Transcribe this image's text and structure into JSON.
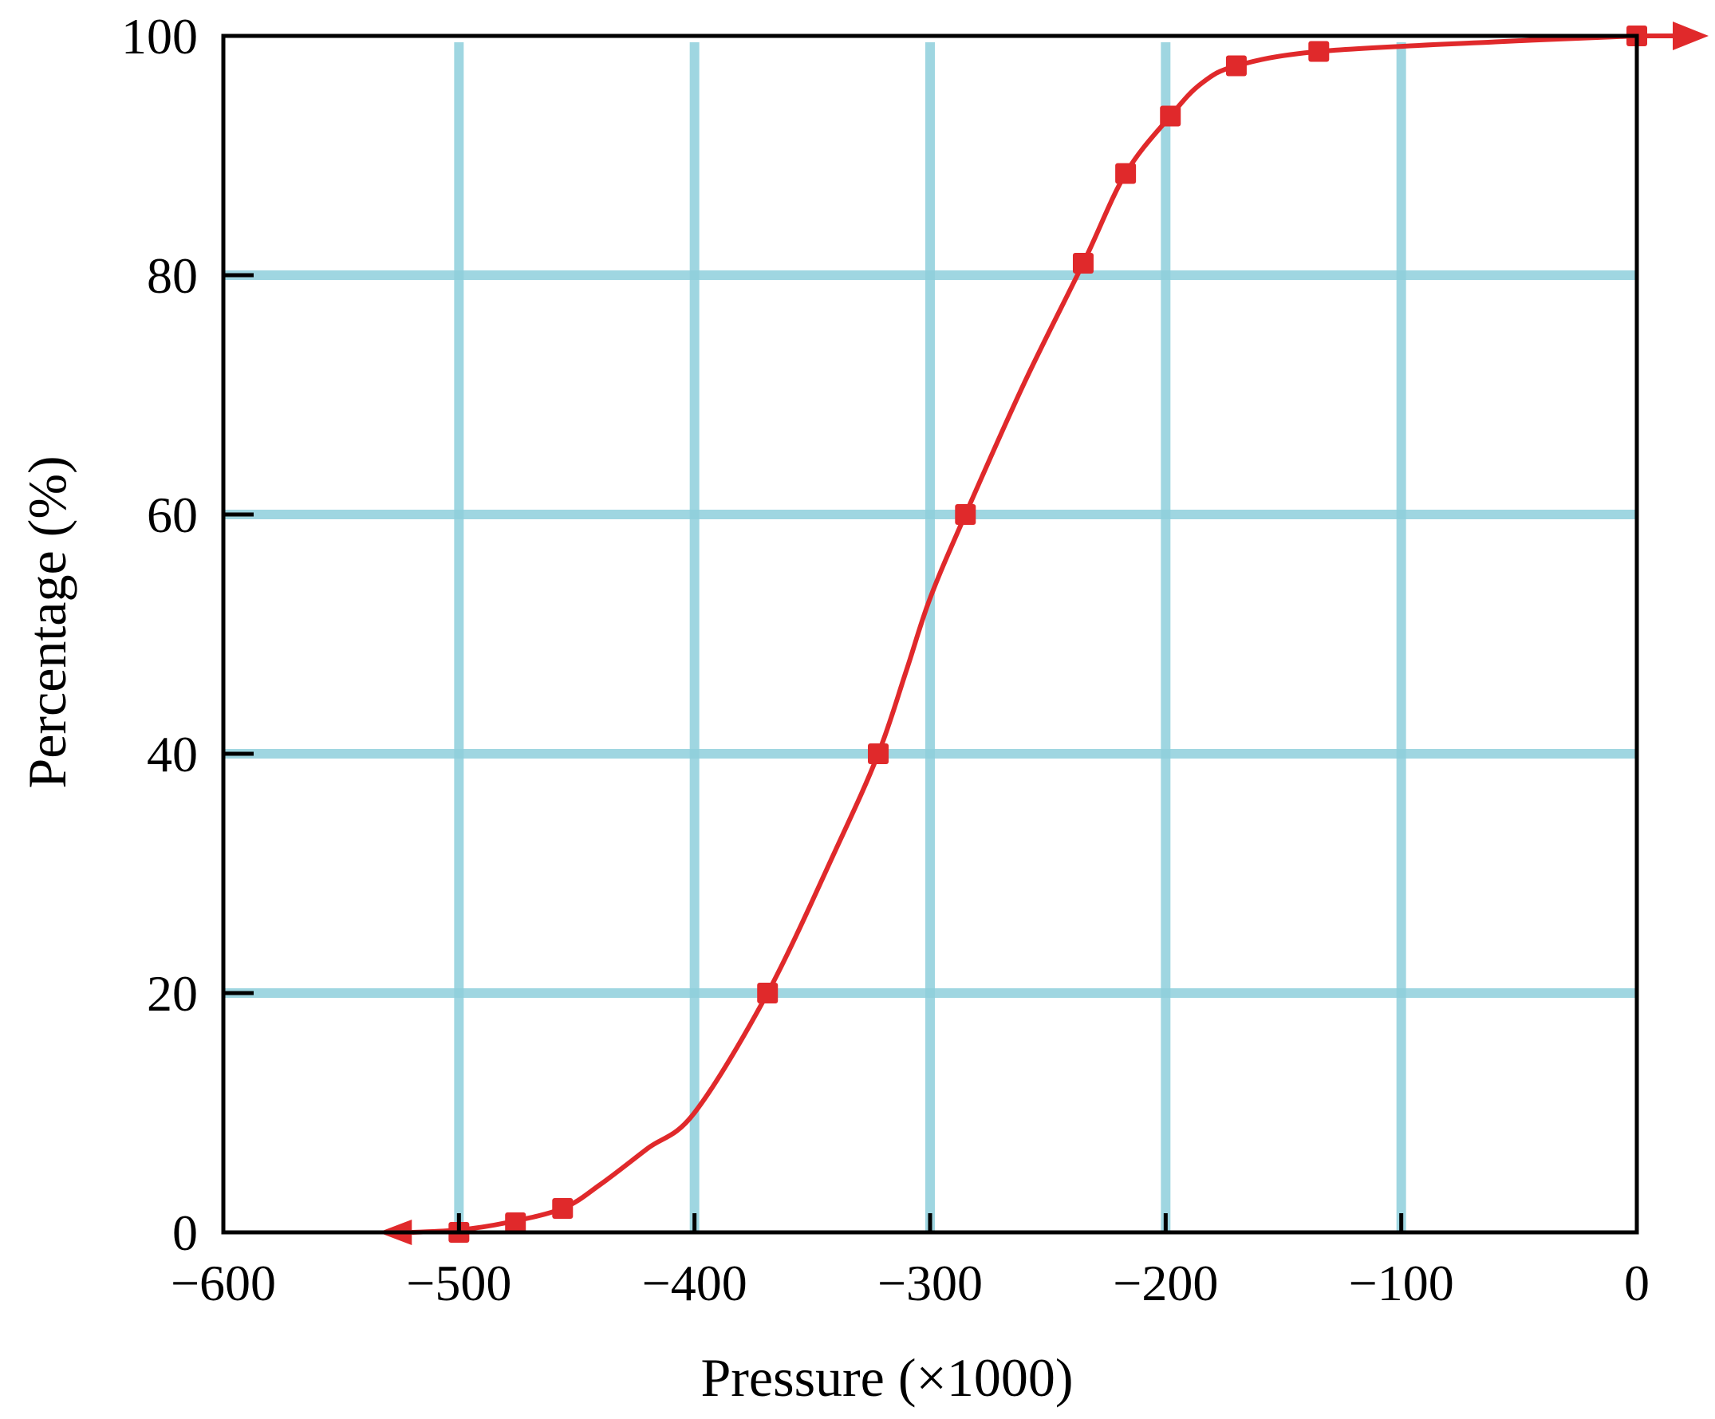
{
  "chart_data": {
    "type": "line",
    "title": "",
    "xlabel": "Pressure (×1000)",
    "ylabel": "Percentage (%)",
    "xlim": [
      -600,
      0
    ],
    "ylim": [
      0,
      100
    ],
    "xticks": [
      -600,
      -500,
      -400,
      -300,
      -200,
      -100,
      0
    ],
    "yticks": [
      0,
      20,
      40,
      60,
      80,
      100
    ],
    "xtick_labels": [
      "−600",
      "−500",
      "−400",
      "−300",
      "−200",
      "−100",
      "0"
    ],
    "ytick_labels": [
      "0",
      "20",
      "40",
      "60",
      "80",
      "100"
    ],
    "grid": true,
    "colors": {
      "grid": "#8fd0dc",
      "series": "#e0292b",
      "axes": "#000000"
    },
    "series": [
      {
        "markers": "square",
        "x": [
          -500,
          -476,
          -456,
          -369,
          -322,
          -285,
          -235,
          -217,
          -198,
          -170,
          -135,
          0
        ],
        "y": [
          0,
          0.8,
          2,
          20,
          40,
          60,
          81,
          88.5,
          93.3,
          97.5,
          98.7,
          100
        ]
      }
    ],
    "curve": {
      "x": [
        -520,
        -500,
        -480,
        -456,
        -440,
        -420,
        -400,
        -369,
        -340,
        -322,
        -310,
        -300,
        -285,
        -260,
        -235,
        -217,
        -198,
        -185,
        -170,
        -135,
        -60,
        0
      ],
      "y": [
        0,
        0.2,
        0.8,
        2,
        4,
        7,
        10,
        20,
        32,
        40,
        47,
        53,
        60,
        71,
        81,
        88.5,
        93.3,
        96,
        97.5,
        98.7,
        99.5,
        100
      ]
    }
  }
}
